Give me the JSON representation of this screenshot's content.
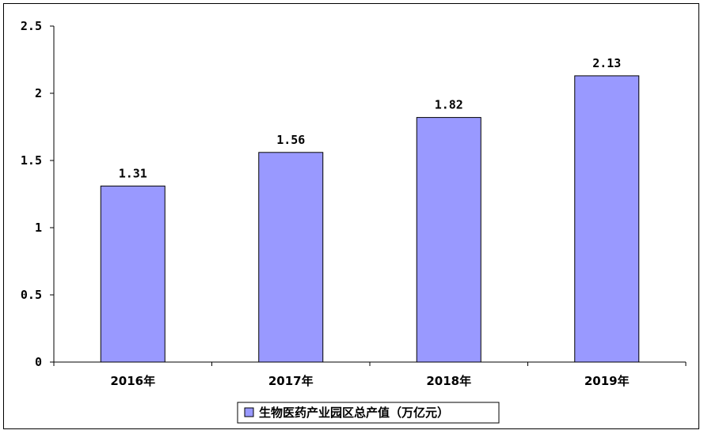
{
  "chart_data": {
    "type": "bar",
    "categories": [
      "2016年",
      "2017年",
      "2018年",
      "2019年"
    ],
    "series": [
      {
        "name": "生物医药产业园区总产值（万亿元）",
        "values": [
          1.31,
          1.56,
          1.82,
          2.13
        ],
        "data_labels": [
          "1.31",
          "1.56",
          "1.82",
          "2.13"
        ]
      }
    ],
    "ylim": [
      0,
      2.5
    ],
    "yticks": [
      "0",
      "0.5",
      "1",
      "1.5",
      "2",
      "2.5"
    ],
    "title": "",
    "xlabel": "",
    "ylabel": "",
    "grid": false,
    "legend_position": "bottom",
    "bar_color": "#9999ff"
  }
}
